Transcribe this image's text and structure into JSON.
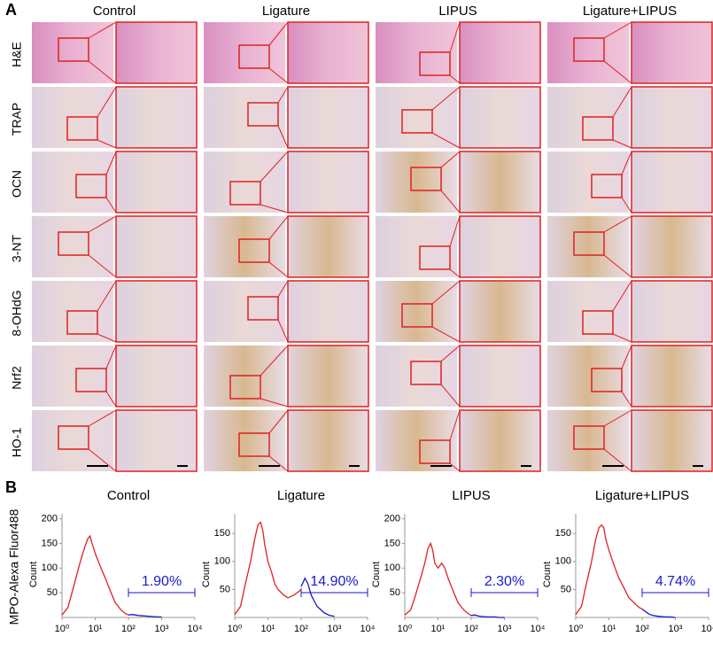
{
  "panel_a": {
    "label": "A",
    "columns": [
      "Control",
      "Ligature",
      "LIPUS",
      "Ligature+LIPUS"
    ],
    "rows": [
      "H&E",
      "TRAP",
      "OCN",
      "3-NT",
      "8-OHdG",
      "Nrf2",
      "HO-1"
    ]
  },
  "panel_b": {
    "label": "B",
    "y_axis_label": "MPO-Alexa Fluor488"
  },
  "chart_data": [
    {
      "type": "line",
      "title": "Control",
      "y_label": "Count",
      "log_x": true,
      "xlim": [
        1,
        10000
      ],
      "xticks": [
        {
          "value": 1,
          "label": "10⁰"
        },
        {
          "value": 10,
          "label": "10¹"
        },
        {
          "value": 100,
          "label": "10²"
        },
        {
          "value": 1000,
          "label": "10³"
        },
        {
          "value": 10000,
          "label": "10⁴"
        }
      ],
      "ylim": [
        0,
        210
      ],
      "yticks": [
        50,
        100,
        150,
        200
      ],
      "gate_x": [
        100,
        10000
      ],
      "gate_label": "1.90%",
      "series": [
        {
          "color": "#e02020",
          "x": [
            1,
            1.5,
            2,
            3,
            4,
            5,
            6,
            7,
            8,
            10,
            13,
            16,
            20,
            30,
            40,
            60,
            80,
            100
          ],
          "values": [
            5,
            20,
            50,
            95,
            125,
            145,
            160,
            165,
            150,
            130,
            110,
            95,
            80,
            50,
            30,
            15,
            8,
            5
          ]
        },
        {
          "color": "#1a1acc",
          "x": [
            100,
            130,
            160,
            200,
            300,
            500,
            700,
            1000
          ],
          "values": [
            5,
            6,
            5,
            4,
            3,
            2,
            1,
            1
          ]
        }
      ]
    },
    {
      "type": "line",
      "title": "Ligature",
      "y_label": "Count",
      "log_x": true,
      "xlim": [
        1,
        10000
      ],
      "xticks": [
        {
          "value": 1,
          "label": "10⁰"
        },
        {
          "value": 10,
          "label": "10¹"
        },
        {
          "value": 100,
          "label": "10²"
        },
        {
          "value": 1000,
          "label": "10³"
        },
        {
          "value": 10000,
          "label": "10⁴"
        }
      ],
      "ylim": [
        0,
        185
      ],
      "yticks": [
        50,
        100,
        150
      ],
      "gate_x": [
        100,
        10000
      ],
      "gate_label": "14.90%",
      "series": [
        {
          "color": "#e02020",
          "x": [
            1,
            1.5,
            2,
            3,
            4,
            5,
            6,
            7,
            8,
            10,
            13,
            16,
            20,
            30,
            40,
            60,
            80,
            100
          ],
          "values": [
            5,
            20,
            55,
            100,
            140,
            165,
            170,
            155,
            130,
            100,
            80,
            60,
            50,
            40,
            35,
            40,
            45,
            50
          ]
        },
        {
          "color": "#1a1acc",
          "x": [
            100,
            130,
            160,
            200,
            300,
            500,
            700,
            1000
          ],
          "values": [
            55,
            70,
            60,
            40,
            20,
            8,
            4,
            2
          ]
        }
      ]
    },
    {
      "type": "line",
      "title": "LIPUS",
      "y_label": "Count",
      "log_x": true,
      "xlim": [
        1,
        10000
      ],
      "xticks": [
        {
          "value": 1,
          "label": "10⁰"
        },
        {
          "value": 10,
          "label": "10¹"
        },
        {
          "value": 100,
          "label": "10²"
        },
        {
          "value": 1000,
          "label": "10³"
        },
        {
          "value": 10000,
          "label": "10⁴"
        }
      ],
      "ylim": [
        0,
        210
      ],
      "yticks": [
        50,
        100,
        150,
        200
      ],
      "gate_x": [
        100,
        10000
      ],
      "gate_label": "2.30%",
      "series": [
        {
          "color": "#e02020",
          "x": [
            1,
            1.5,
            2,
            3,
            4,
            5,
            6,
            7,
            8,
            10,
            13,
            16,
            20,
            30,
            40,
            60,
            80,
            100
          ],
          "values": [
            5,
            15,
            40,
            80,
            110,
            140,
            150,
            135,
            110,
            100,
            110,
            100,
            80,
            50,
            30,
            15,
            8,
            4
          ]
        },
        {
          "color": "#1a1acc",
          "x": [
            100,
            130,
            160,
            200,
            300,
            500,
            700,
            1000
          ],
          "values": [
            4,
            5,
            3,
            2,
            1,
            1,
            0,
            0
          ]
        }
      ]
    },
    {
      "type": "line",
      "title": "Ligature+LIPUS",
      "y_label": "Count",
      "log_x": true,
      "xlim": [
        1,
        10000
      ],
      "xticks": [
        {
          "value": 1,
          "label": "10⁰"
        },
        {
          "value": 10,
          "label": "10¹"
        },
        {
          "value": 100,
          "label": "10²"
        },
        {
          "value": 1000,
          "label": "10³"
        },
        {
          "value": 10000,
          "label": "10⁴"
        }
      ],
      "ylim": [
        0,
        185
      ],
      "yticks": [
        50,
        100,
        150
      ],
      "gate_x": [
        100,
        10000
      ],
      "gate_label": "4.74%",
      "series": [
        {
          "color": "#e02020",
          "x": [
            1,
            1.5,
            2,
            3,
            4,
            5,
            6,
            7,
            8,
            10,
            13,
            16,
            20,
            30,
            40,
            60,
            80,
            100
          ],
          "values": [
            5,
            20,
            55,
            100,
            140,
            160,
            165,
            160,
            140,
            120,
            100,
            85,
            70,
            50,
            35,
            25,
            18,
            15
          ]
        },
        {
          "color": "#1a1acc",
          "x": [
            100,
            130,
            160,
            200,
            300,
            500,
            700,
            1000
          ],
          "values": [
            15,
            10,
            6,
            4,
            2,
            1,
            1,
            0
          ]
        }
      ]
    }
  ]
}
